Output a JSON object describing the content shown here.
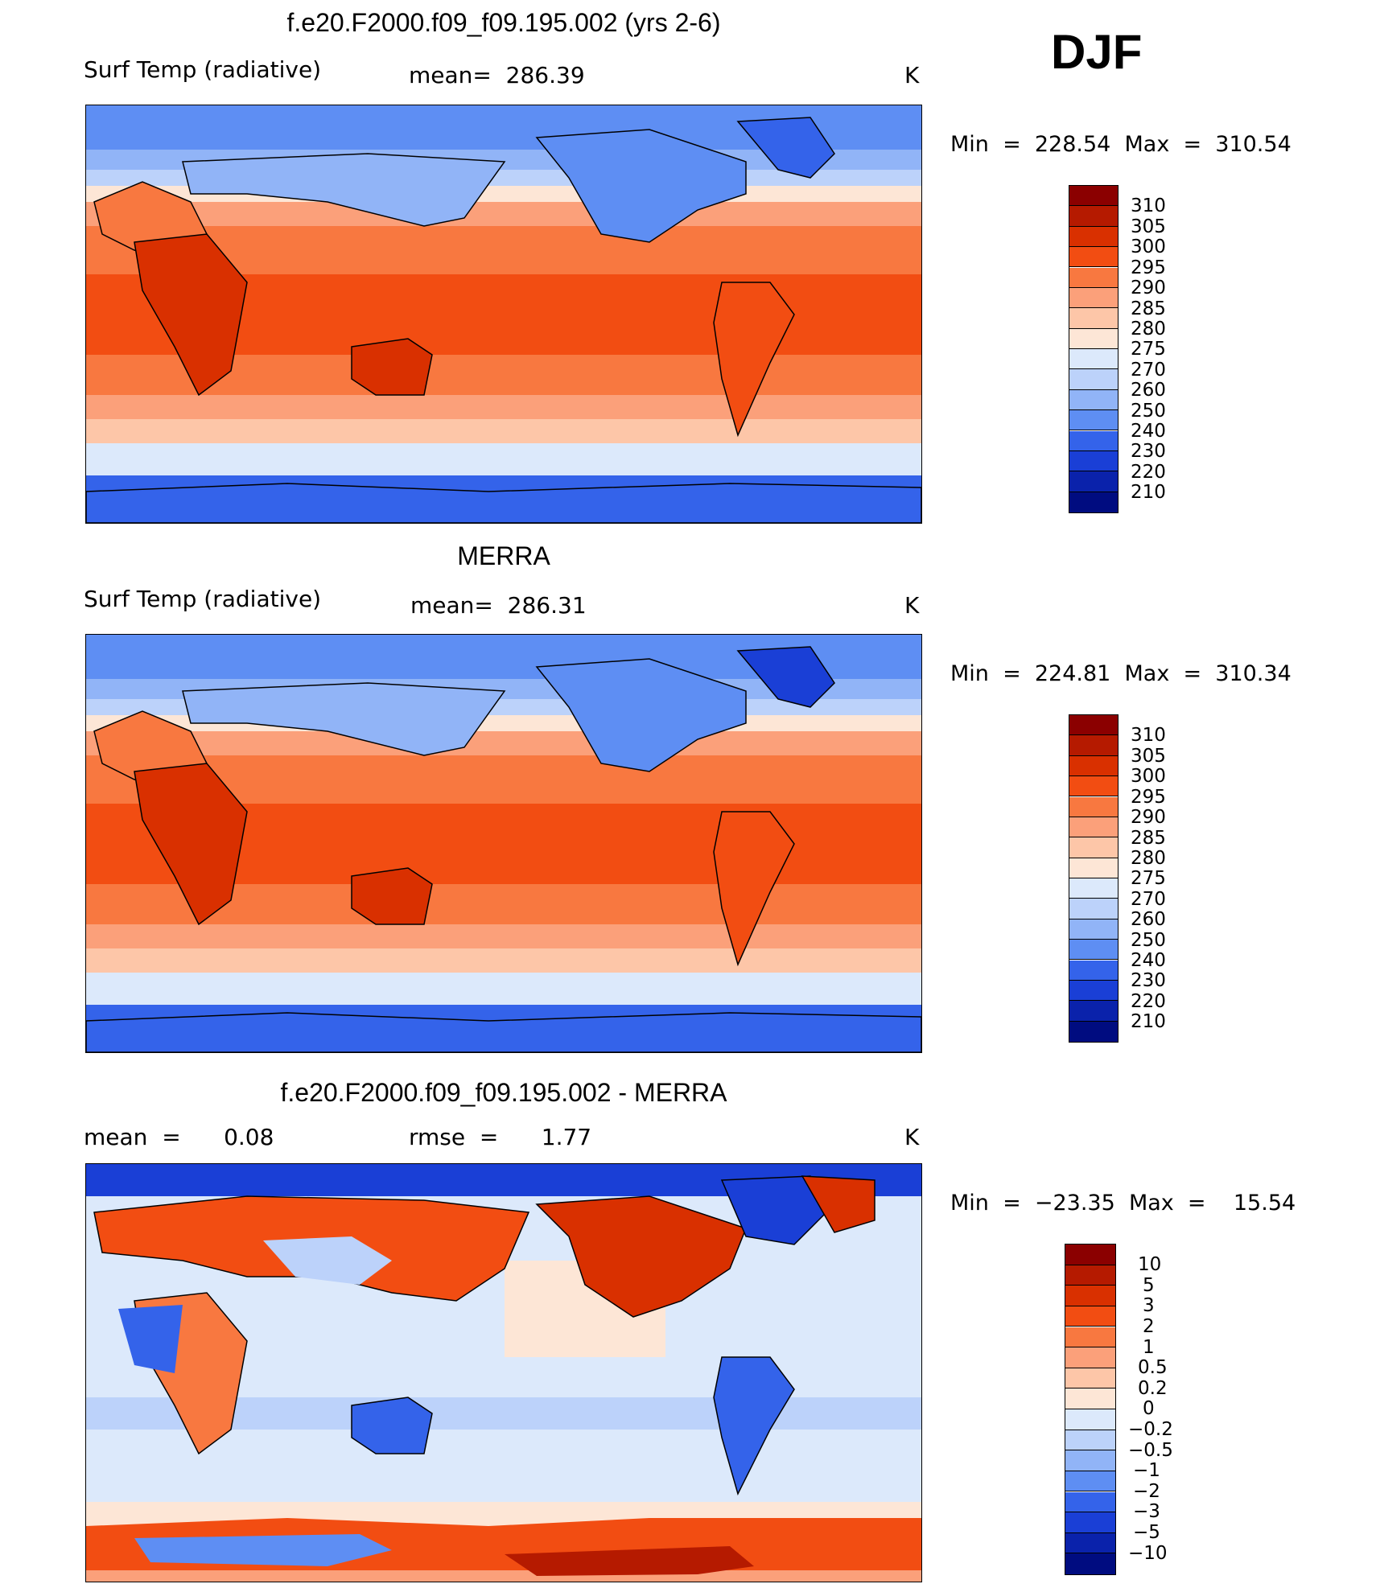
{
  "season": "DJF",
  "panels": [
    {
      "title": "f.e20.F2000.f09_f09.195.002 (yrs 2-6)",
      "left_label": "Surf Temp (radiative)",
      "center_label": "mean=  286.39",
      "unit": "K",
      "minmax": "Min  =  228.54  Max  =  310.54",
      "colorbar_labels": [
        "310",
        "305",
        "300",
        "295",
        "290",
        "285",
        "280",
        "275",
        "270",
        "260",
        "250",
        "240",
        "230",
        "220",
        "210"
      ]
    },
    {
      "title": "MERRA",
      "left_label": "Surf Temp (radiative)",
      "center_label": "mean=  286.31",
      "unit": "K",
      "minmax": "Min  =  224.81  Max  =  310.34",
      "colorbar_labels": [
        "310",
        "305",
        "300",
        "295",
        "290",
        "285",
        "280",
        "275",
        "270",
        "260",
        "250",
        "240",
        "230",
        "220",
        "210"
      ]
    },
    {
      "title": "f.e20.F2000.f09_f09.195.002 - MERRA",
      "left_label": "mean  =      0.08",
      "center_label": "rmse  =      1.77",
      "unit": "K",
      "minmax": "Min  =  −23.35  Max  =    15.54",
      "colorbar_labels": [
        "10",
        "5",
        "3",
        "2",
        "1",
        "0.5",
        "0.2",
        "0",
        "−0.2",
        "−0.5",
        "−1",
        "−2",
        "−3",
        "−5",
        "−10"
      ]
    }
  ],
  "colorbar_colors": [
    "#8b0000",
    "#b51a00",
    "#d93000",
    "#f24d12",
    "#f87840",
    "#fba07a",
    "#fdc6a8",
    "#fde6d6",
    "#dce9fb",
    "#bcd2fa",
    "#91b4f7",
    "#5e8ef3",
    "#3463ea",
    "#1a3fd6",
    "#0a22ab",
    "#000c80"
  ]
}
